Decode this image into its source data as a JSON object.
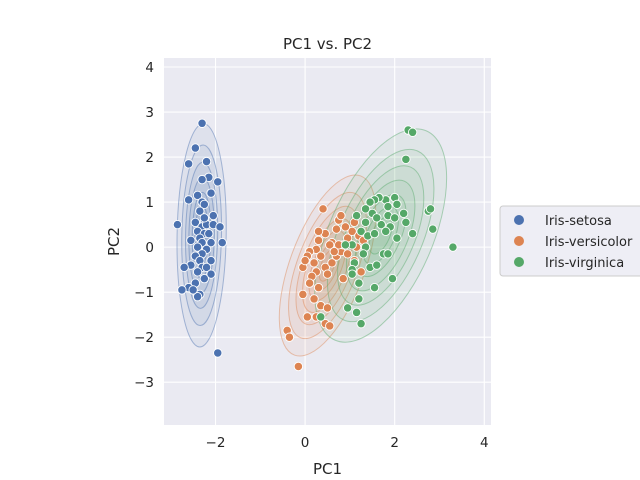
{
  "chart_data": {
    "type": "scatter",
    "title": "PC1 vs. PC2",
    "xlabel": "PC1",
    "ylabel": "PC2",
    "xlim": [
      -3.15,
      4.15
    ],
    "ylim": [
      -3.95,
      4.2
    ],
    "xticks": [
      -2,
      0,
      2,
      4
    ],
    "yticks": [
      -3,
      -2,
      -1,
      0,
      1,
      2,
      3,
      4
    ],
    "xtick_labels": [
      "−2",
      "0",
      "2",
      "4"
    ],
    "ytick_labels": [
      "−3",
      "−2",
      "−1",
      "0",
      "1",
      "2",
      "3",
      "4"
    ],
    "grid": true,
    "legend_position": "right",
    "overlay": "kde-contours",
    "series": [
      {
        "name": "Iris-setosa",
        "color": "#4c72b0",
        "points": [
          [
            -2.3,
            2.75
          ],
          [
            -2.45,
            2.2
          ],
          [
            -2.6,
            1.85
          ],
          [
            -2.2,
            1.9
          ],
          [
            -2.15,
            1.55
          ],
          [
            -2.3,
            1.5
          ],
          [
            -1.95,
            1.45
          ],
          [
            -2.1,
            1.2
          ],
          [
            -2.4,
            1.15
          ],
          [
            -2.3,
            1.0
          ],
          [
            -2.6,
            1.05
          ],
          [
            -2.25,
            0.95
          ],
          [
            -2.35,
            0.8
          ],
          [
            -2.05,
            0.7
          ],
          [
            -2.25,
            0.6
          ],
          [
            -2.45,
            0.55
          ],
          [
            -2.3,
            0.45
          ],
          [
            -2.2,
            0.5
          ],
          [
            -2.05,
            0.5
          ],
          [
            -1.9,
            0.45
          ],
          [
            -2.4,
            0.35
          ],
          [
            -2.25,
            0.3
          ],
          [
            -2.15,
            0.3
          ],
          [
            -2.35,
            0.2
          ],
          [
            -2.55,
            0.15
          ],
          [
            -2.85,
            0.5
          ],
          [
            -2.3,
            0.1
          ],
          [
            -2.1,
            0.1
          ],
          [
            -1.85,
            0.1
          ],
          [
            -2.4,
            0.0
          ],
          [
            -2.2,
            -0.05
          ],
          [
            -2.3,
            -0.15
          ],
          [
            -2.45,
            -0.2
          ],
          [
            -2.35,
            -0.3
          ],
          [
            -2.1,
            -0.3
          ],
          [
            -2.55,
            -0.4
          ],
          [
            -2.7,
            -0.45
          ],
          [
            -2.3,
            -0.45
          ],
          [
            -2.2,
            -0.45
          ],
          [
            -2.4,
            -0.55
          ],
          [
            -2.1,
            -0.6
          ],
          [
            -2.25,
            -0.7
          ],
          [
            -2.45,
            -0.8
          ],
          [
            -2.6,
            -0.9
          ],
          [
            -2.75,
            -0.95
          ],
          [
            -2.35,
            -1.05
          ],
          [
            -2.4,
            -1.1
          ],
          [
            -2.5,
            -0.95
          ],
          [
            -1.95,
            -2.35
          ],
          [
            -2.25,
            0.65
          ]
        ]
      },
      {
        "name": "Iris-versicolor",
        "color": "#dd8452",
        "points": [
          [
            0.4,
            0.85
          ],
          [
            0.75,
            0.6
          ],
          [
            0.8,
            0.7
          ],
          [
            0.7,
            0.4
          ],
          [
            0.45,
            0.3
          ],
          [
            0.3,
            0.35
          ],
          [
            0.6,
            0.1
          ],
          [
            0.55,
            0.05
          ],
          [
            0.25,
            -0.05
          ],
          [
            0.1,
            -0.1
          ],
          [
            0.35,
            -0.2
          ],
          [
            0.2,
            -0.35
          ],
          [
            0.05,
            -0.2
          ],
          [
            -0.05,
            -0.45
          ],
          [
            0.25,
            -0.55
          ],
          [
            0.45,
            -0.45
          ],
          [
            0.6,
            -0.35
          ],
          [
            0.7,
            -0.2
          ],
          [
            0.8,
            -0.1
          ],
          [
            0.85,
            0.05
          ],
          [
            0.95,
            0.2
          ],
          [
            1.1,
            0.55
          ],
          [
            1.05,
            0.35
          ],
          [
            1.2,
            0.25
          ],
          [
            1.3,
            0.15
          ],
          [
            0.95,
            -0.15
          ],
          [
            1.1,
            -0.3
          ],
          [
            1.25,
            -0.55
          ],
          [
            0.15,
            -0.65
          ],
          [
            0.3,
            -0.9
          ],
          [
            0.1,
            -0.8
          ],
          [
            -0.05,
            -1.05
          ],
          [
            0.2,
            -1.15
          ],
          [
            0.35,
            -1.3
          ],
          [
            0.5,
            -1.35
          ],
          [
            0.25,
            -1.55
          ],
          [
            0.05,
            -1.55
          ],
          [
            0.45,
            -1.7
          ],
          [
            0.55,
            -1.75
          ],
          [
            -0.4,
            -1.85
          ],
          [
            -0.35,
            -2.0
          ],
          [
            -0.15,
            -2.65
          ],
          [
            0.75,
            0.05
          ],
          [
            0.65,
            -0.1
          ],
          [
            0.9,
            0.45
          ],
          [
            0.5,
            -0.6
          ],
          [
            0.0,
            -0.3
          ],
          [
            0.85,
            -0.7
          ],
          [
            1.15,
            0.0
          ],
          [
            0.3,
            0.15
          ]
        ]
      },
      {
        "name": "Iris-virginica",
        "color": "#55a868",
        "points": [
          [
            2.3,
            2.6
          ],
          [
            2.4,
            2.55
          ],
          [
            2.25,
            1.95
          ],
          [
            1.8,
            1.05
          ],
          [
            1.65,
            1.1
          ],
          [
            1.55,
            1.05
          ],
          [
            2.0,
            1.1
          ],
          [
            2.05,
            0.95
          ],
          [
            1.85,
            0.9
          ],
          [
            1.45,
            1.0
          ],
          [
            1.35,
            0.85
          ],
          [
            1.5,
            0.75
          ],
          [
            1.85,
            0.7
          ],
          [
            2.0,
            0.65
          ],
          [
            2.25,
            0.55
          ],
          [
            2.4,
            0.3
          ],
          [
            2.75,
            0.8
          ],
          [
            2.8,
            0.85
          ],
          [
            2.85,
            0.4
          ],
          [
            3.3,
            0.0
          ],
          [
            1.05,
            0.05
          ],
          [
            1.25,
            0.35
          ],
          [
            1.4,
            0.25
          ],
          [
            1.55,
            0.3
          ],
          [
            1.35,
            0.0
          ],
          [
            1.1,
            -0.35
          ],
          [
            1.05,
            -0.5
          ],
          [
            1.2,
            -0.8
          ],
          [
            1.2,
            -1.15
          ],
          [
            1.15,
            -1.45
          ],
          [
            1.25,
            -1.7
          ],
          [
            0.95,
            -1.35
          ],
          [
            0.35,
            -1.55
          ],
          [
            1.55,
            -0.9
          ],
          [
            1.45,
            -0.45
          ],
          [
            1.6,
            -0.4
          ],
          [
            1.75,
            -0.15
          ],
          [
            1.85,
            -0.15
          ],
          [
            1.95,
            -0.7
          ],
          [
            1.3,
            -0.15
          ],
          [
            1.7,
            0.5
          ],
          [
            2.2,
            0.75
          ],
          [
            1.9,
            0.45
          ],
          [
            1.6,
            0.65
          ],
          [
            0.9,
            0.05
          ],
          [
            1.05,
            -0.6
          ],
          [
            1.35,
            0.55
          ],
          [
            2.05,
            0.2
          ],
          [
            1.15,
            0.7
          ],
          [
            1.8,
            0.35
          ]
        ]
      }
    ]
  }
}
